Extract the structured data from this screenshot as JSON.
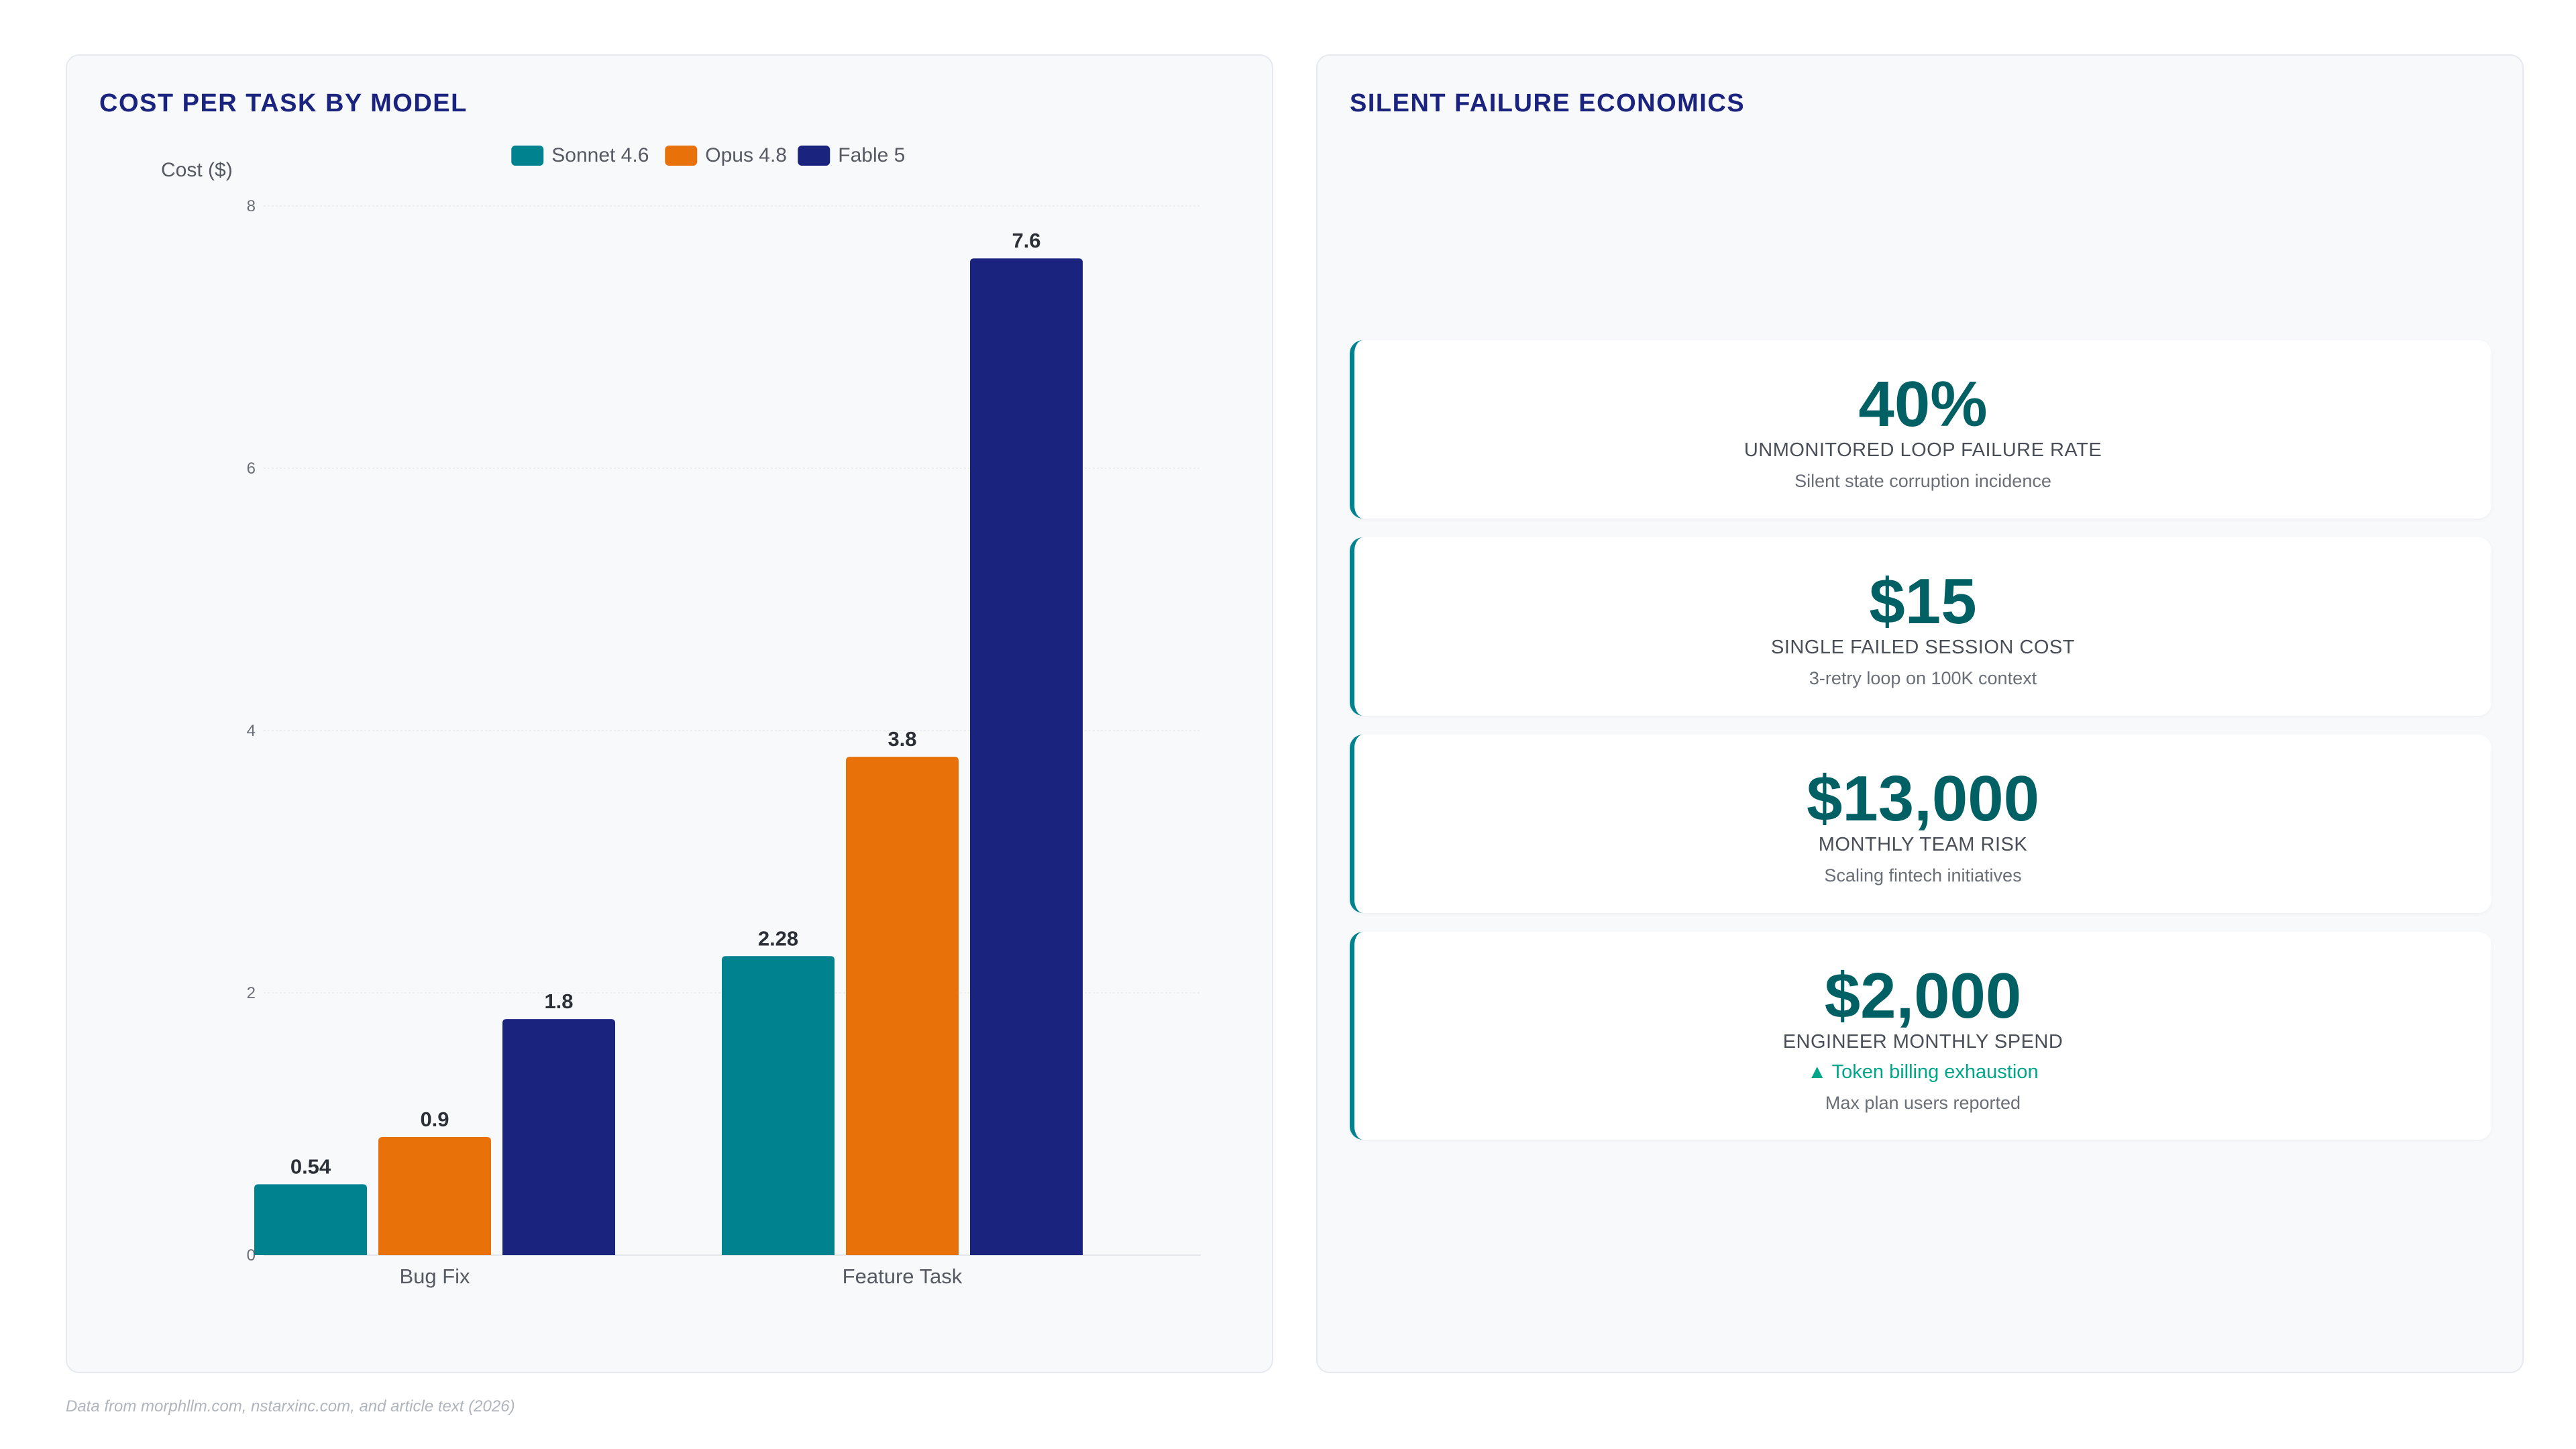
{
  "left_panel": {
    "title": "COST PER TASK BY MODEL"
  },
  "right_panel": {
    "title": "SILENT FAILURE ECONOMICS"
  },
  "chart_data": {
    "type": "bar",
    "categories": [
      "Bug Fix",
      "Feature Task"
    ],
    "series": [
      {
        "name": "Sonnet 4.6",
        "color": "#00838f",
        "values": [
          0.54,
          2.28
        ]
      },
      {
        "name": "Opus 4.8",
        "color": "#e8710a",
        "values": [
          0.9,
          3.8
        ]
      },
      {
        "name": "Fable 5",
        "color": "#1a237e",
        "values": [
          1.8,
          7.6
        ]
      }
    ],
    "ylabel": "Cost ($)",
    "ylim": [
      0,
      8
    ],
    "yticks": [
      0,
      2,
      4,
      6,
      8
    ],
    "data_labels": [
      "0.54",
      "0.9",
      "1.8",
      "2.28",
      "3.8",
      "7.6"
    ],
    "grid": true,
    "legend": "top-center"
  },
  "kpis": [
    {
      "value": "40%",
      "label": "UNMONITORED LOOP FAILURE RATE",
      "sub": "Silent state corruption incidence"
    },
    {
      "value": "$15",
      "label": "SINGLE FAILED SESSION COST",
      "sub": "3-retry loop on 100K context"
    },
    {
      "value": "$13,000",
      "label": "MONTHLY TEAM RISK",
      "sub": "Scaling fintech initiatives"
    },
    {
      "value": "$2,000",
      "label": "ENGINEER MONTHLY SPEND",
      "trend": "▲ Token billing exhaustion",
      "sub": "Max plan users reported"
    }
  ],
  "colors": {
    "accent": "#00838f",
    "kpi_value": "#006064",
    "title": "#1a237e",
    "trend": "#00a68a"
  },
  "footer": {
    "source": "Data from morphllm.com, nstarxinc.com, and article text (2026)"
  }
}
